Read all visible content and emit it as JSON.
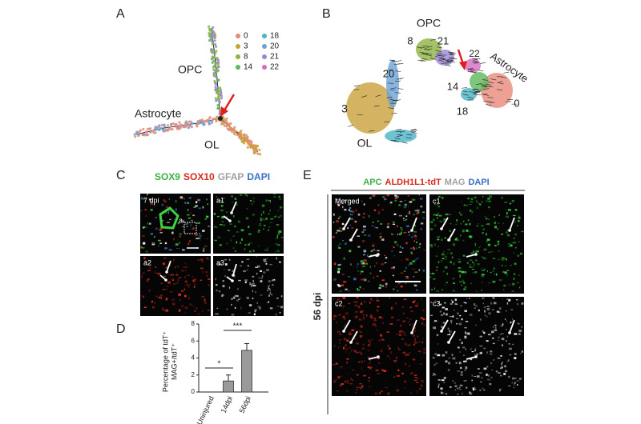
{
  "panel_a": {
    "label": "A",
    "legend": [
      {
        "name": "0",
        "color": "#e8897a"
      },
      {
        "name": "3",
        "color": "#c9a13b"
      },
      {
        "name": "8",
        "color": "#8db340"
      },
      {
        "name": "14",
        "color": "#5cb85c"
      },
      {
        "name": "18",
        "color": "#4ab3c6"
      },
      {
        "name": "20",
        "color": "#6ba1d6"
      },
      {
        "name": "21",
        "color": "#9b86d4"
      },
      {
        "name": "22",
        "color": "#d46bc0"
      }
    ],
    "annotations": [
      "OPC",
      "Astrocyte",
      "OL"
    ]
  },
  "panel_b": {
    "label": "B",
    "annotations": [
      "OPC",
      "Astrocyte",
      "OL",
      "8",
      "21",
      "20",
      "3",
      "22",
      "14",
      "0",
      "18"
    ]
  },
  "panel_c": {
    "label": "C",
    "stains": [
      {
        "text": "SOX9",
        "color": "#3cb043"
      },
      {
        "text": "SOX10",
        "color": "#d8281c"
      },
      {
        "text": "GFAP",
        "color": "#a0a0a0"
      },
      {
        "text": "DAPI",
        "color": "#3a6fc4"
      }
    ],
    "images": [
      "7 dpi",
      "a1",
      "a2",
      "a3"
    ],
    "inset": "a"
  },
  "chart_data": {
    "type": "bar",
    "label": "D",
    "ylabel": [
      "Percentage of tdT⁺",
      "MAG+/tdT⁺"
    ],
    "categories": [
      "Uninjured",
      "14dpi",
      "56dpi"
    ],
    "values": [
      0,
      1.3,
      4.9
    ],
    "errors": [
      0,
      0.7,
      0.8
    ],
    "ylim": [
      0,
      8
    ],
    "yticks": [
      0,
      2,
      4,
      6,
      8
    ],
    "significance": [
      "*",
      "***"
    ],
    "color": "#9a9a9a"
  },
  "panel_e": {
    "label": "E",
    "stains": [
      {
        "text": "APC",
        "color": "#3cb043"
      },
      {
        "text": "ALDH1L1-tdT",
        "color": "#d8281c"
      },
      {
        "text": "MAG",
        "color": "#a0a0a0"
      },
      {
        "text": "DAPI",
        "color": "#3a6fc4"
      }
    ],
    "side_label": "56 dpi",
    "images": [
      "Merged",
      "c1",
      "c2",
      "c3"
    ]
  }
}
